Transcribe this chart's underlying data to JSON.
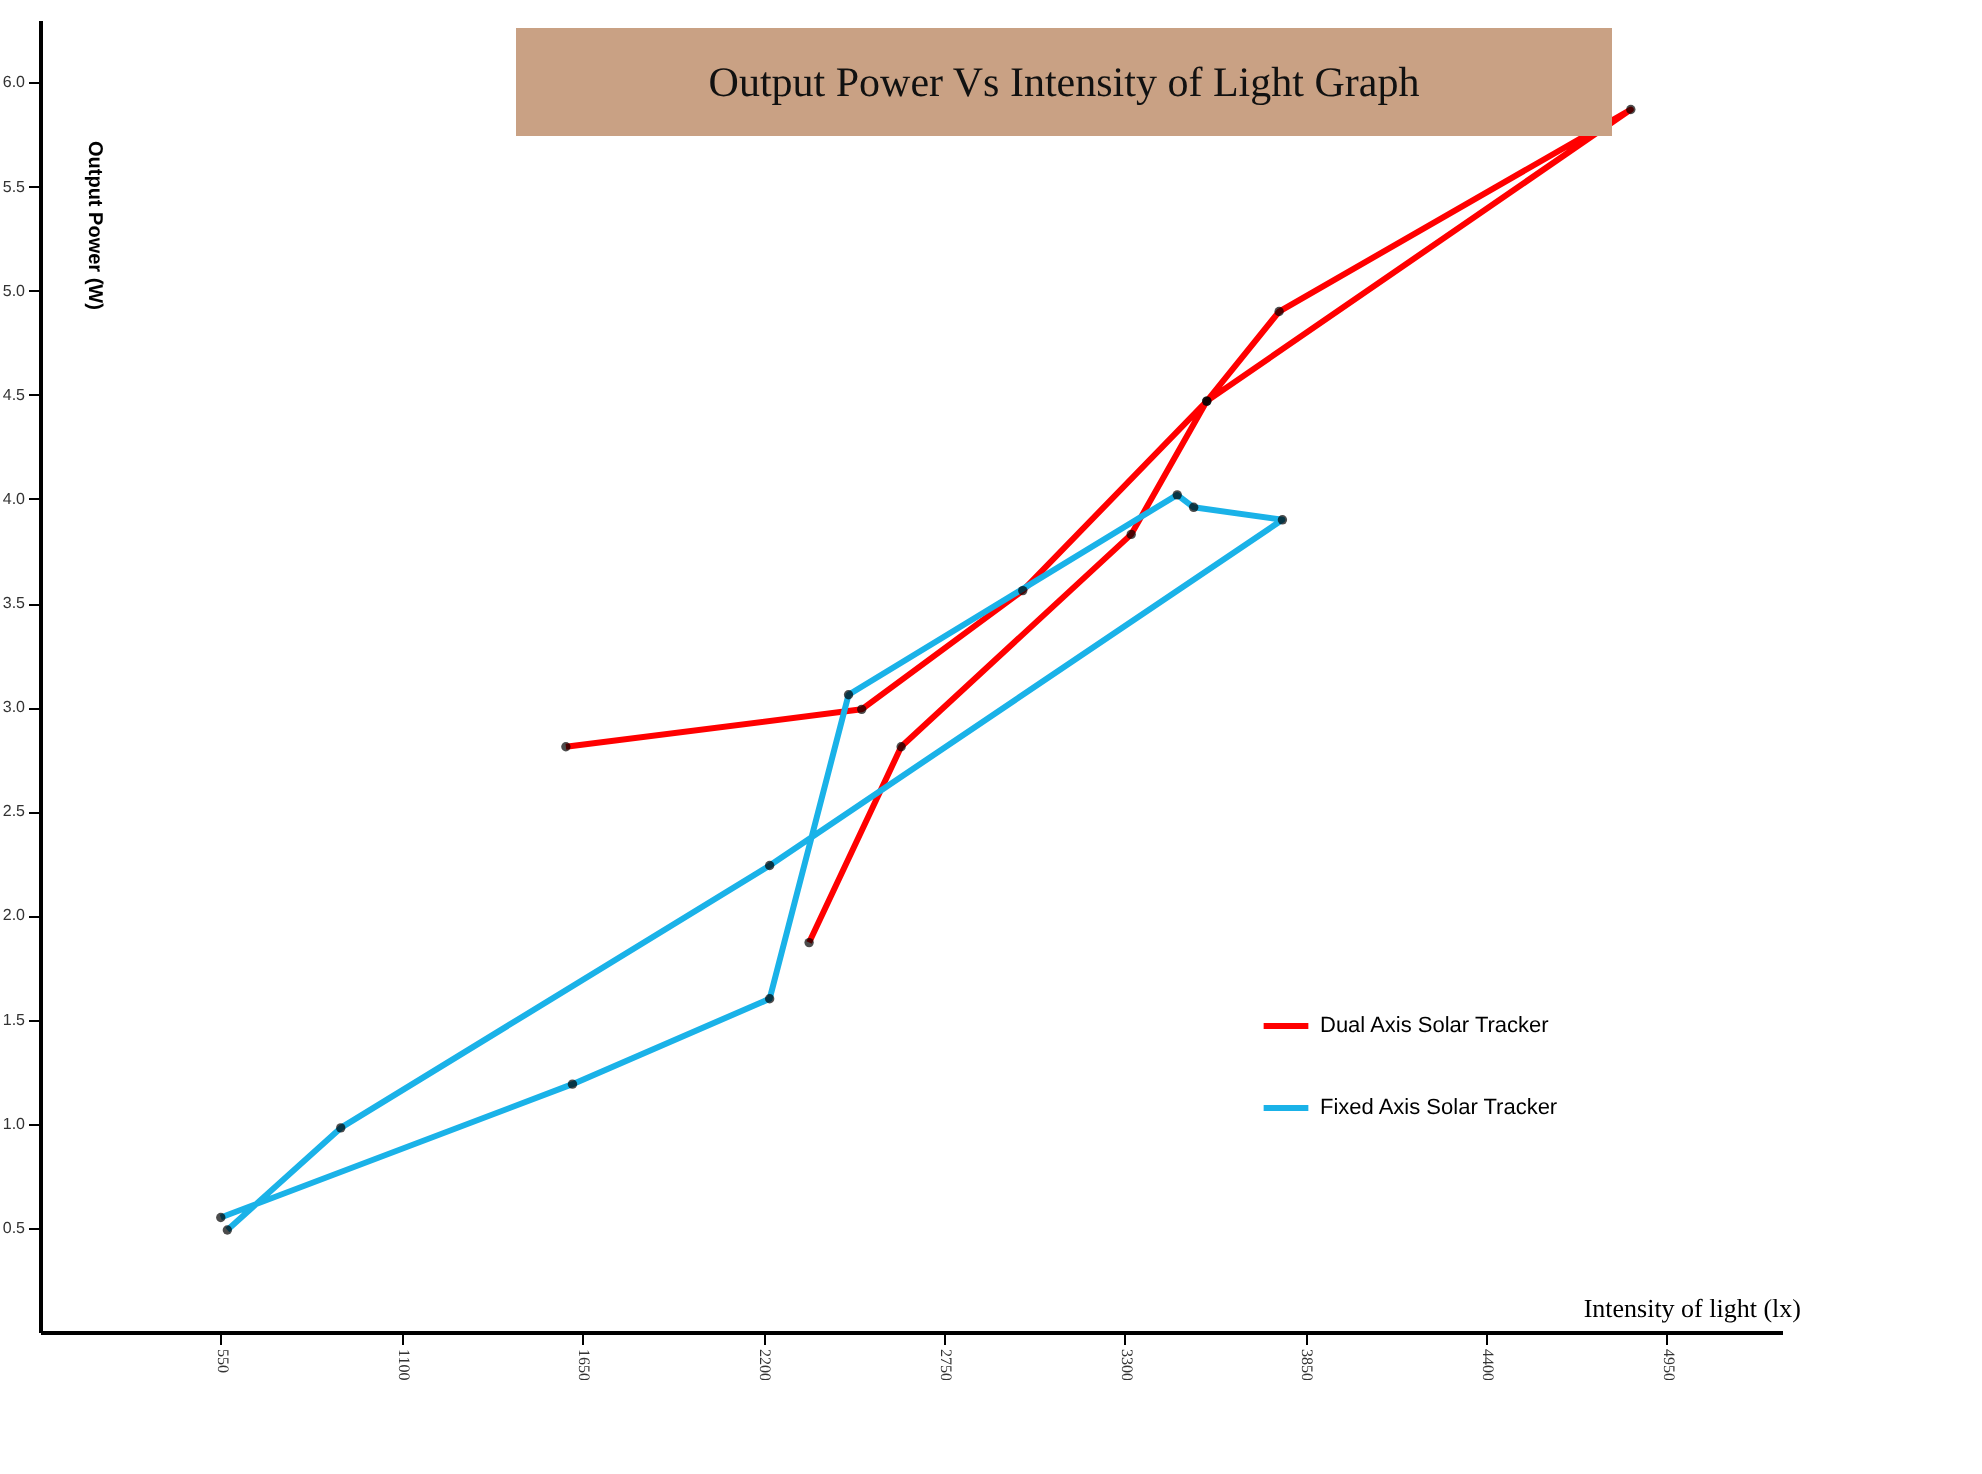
{
  "chart_data": {
    "type": "line",
    "title": "Output Power Vs Intensity of Light Graph",
    "xlabel": "Intensity of light (lx)",
    "ylabel": "Output Power (W)",
    "xlim": [
      0,
      5300
    ],
    "ylim": [
      0,
      6.3
    ],
    "xticks": [
      550,
      1100,
      1650,
      2200,
      2750,
      3300,
      3850,
      4400,
      4950
    ],
    "yticks": [
      0.5,
      {
        "value": 1,
        "label": "1.0"
      },
      1.5,
      {
        "value": 2,
        "label": "2.0"
      },
      2.5,
      {
        "value": 3,
        "label": "3.0"
      },
      3.5,
      {
        "value": 4,
        "label": "4.0"
      },
      4.5,
      {
        "value": 5,
        "label": "5.0"
      },
      5.5,
      {
        "value": 6,
        "label": "6.0"
      }
    ],
    "series": [
      {
        "name": "Dual Axis Solar Tracker",
        "color": "#ff0000",
        "x": [
          1600,
          2500,
          2990,
          3550,
          3770,
          4840,
          3550,
          3320,
          2620,
          2340
        ],
        "values": [
          2.81,
          2.99,
          3.56,
          4.47,
          4.9,
          5.87,
          4.47,
          3.83,
          2.81,
          1.87
        ]
      },
      {
        "name": "Fixed Axis Solar Tracker",
        "color": "#1ab2e8",
        "x": [
          550,
          1620,
          2220,
          2460,
          3460,
          3510,
          3780,
          2220,
          915,
          570
        ],
        "values": [
          0.55,
          1.19,
          1.6,
          3.06,
          4.02,
          3.96,
          3.9,
          2.24,
          0.98,
          0.49
        ]
      }
    ],
    "marker": "circle",
    "grid": false,
    "legend": "bottom right"
  }
}
